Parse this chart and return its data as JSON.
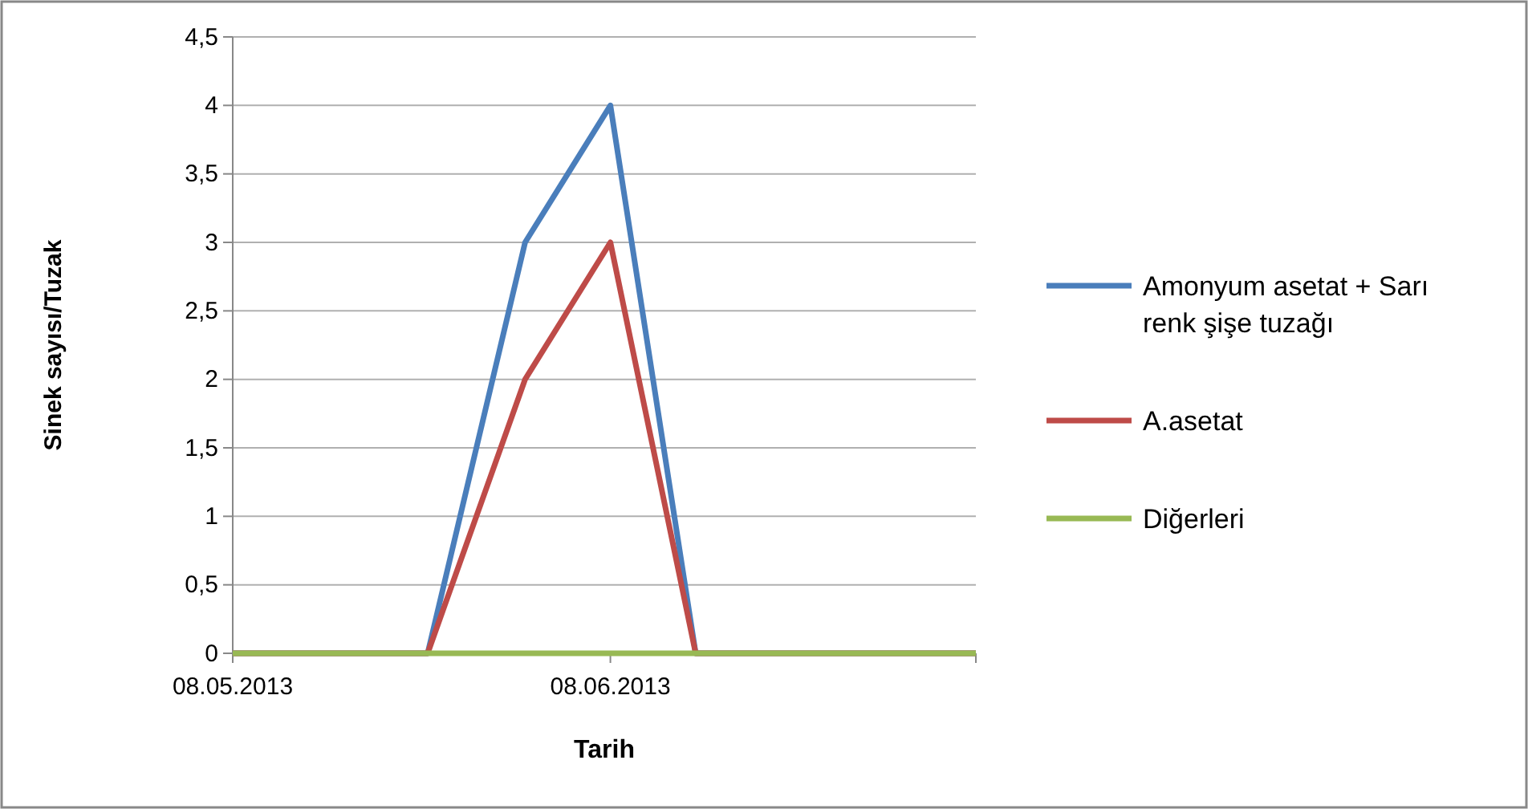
{
  "chart_data": {
    "type": "line",
    "xlabel": "Tarih",
    "ylabel": "Sinek sayısı/Tuzak",
    "x": [
      "2013-05-08",
      "2013-05-24",
      "2013-06-01",
      "2013-06-08",
      "2013-06-15",
      "2013-07-08"
    ],
    "series": [
      {
        "name": "Amonyum asetat + Sarı renk şişe tuzağı",
        "color": "#4a7ebb",
        "values": [
          0,
          0,
          3,
          4,
          0,
          0
        ]
      },
      {
        "name": "A.asetat",
        "color": "#be4b48",
        "values": [
          0,
          0,
          2,
          3,
          0,
          0
        ]
      },
      {
        "name": "Diğerleri",
        "color": "#98b954",
        "values": [
          0,
          0,
          0,
          0,
          0,
          0
        ]
      }
    ],
    "xlim": [
      "2013-05-08",
      "2013-07-08"
    ],
    "xticks": [
      {
        "value": "2013-05-08",
        "label": "08.05.2013"
      },
      {
        "value": "2013-06-08",
        "label": "08.06.2013"
      },
      {
        "value": "2013-07-08",
        "label": null
      }
    ],
    "ylim": [
      0,
      4.5
    ],
    "yticks": [
      0,
      {
        "value": 0.5,
        "label": "0,5"
      },
      1,
      {
        "value": 1.5,
        "label": "1,5"
      },
      2,
      {
        "value": 2.5,
        "label": "2,5"
      },
      3,
      {
        "value": 3.5,
        "label": "3,5"
      },
      4,
      {
        "value": 4.5,
        "label": "4,5"
      }
    ],
    "grid": "y",
    "legend": "right",
    "marker": "none",
    "line_style": "solid"
  }
}
